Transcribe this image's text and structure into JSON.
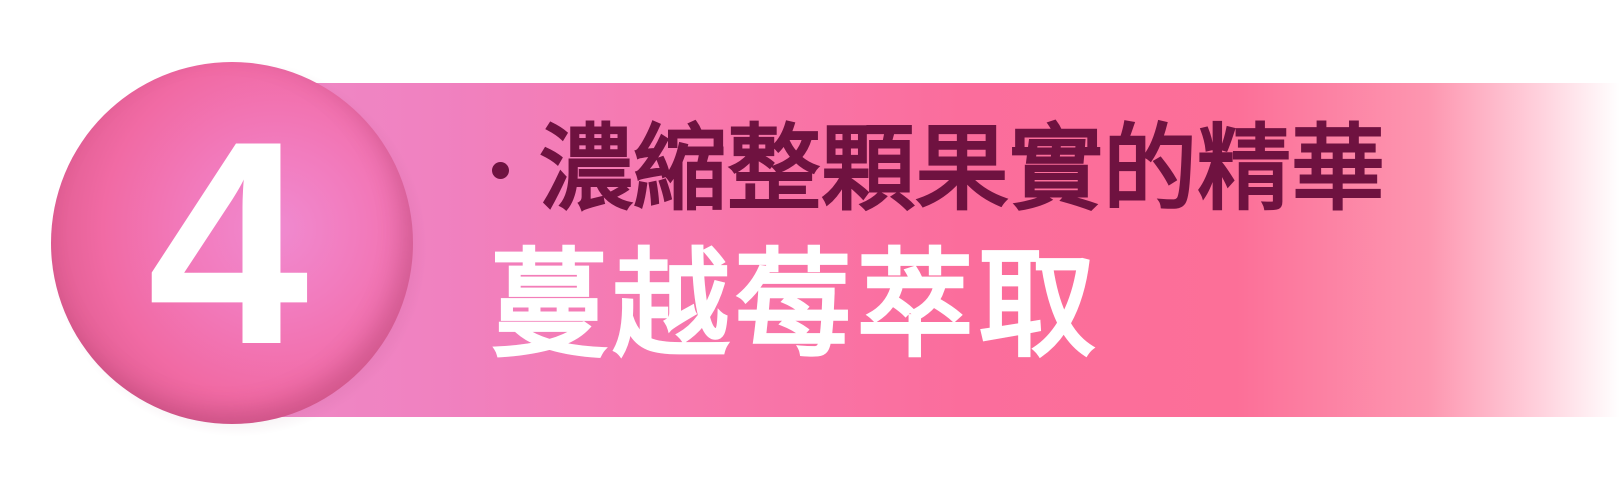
{
  "badge": {
    "number": "4",
    "circle_color": "#f27bbd",
    "number_color": "#ffffff"
  },
  "banner": {
    "gradient_start": "#ee89c6",
    "gradient_mid": "#fb6d9c",
    "gradient_end": "#ffffff"
  },
  "subtitle": {
    "bullet_icon": "dot-bullet-icon",
    "text": "濃縮整顆果實的精華",
    "color": "#6f1240"
  },
  "title": {
    "text": "蔓越莓萃取",
    "color": "#ffffff"
  }
}
